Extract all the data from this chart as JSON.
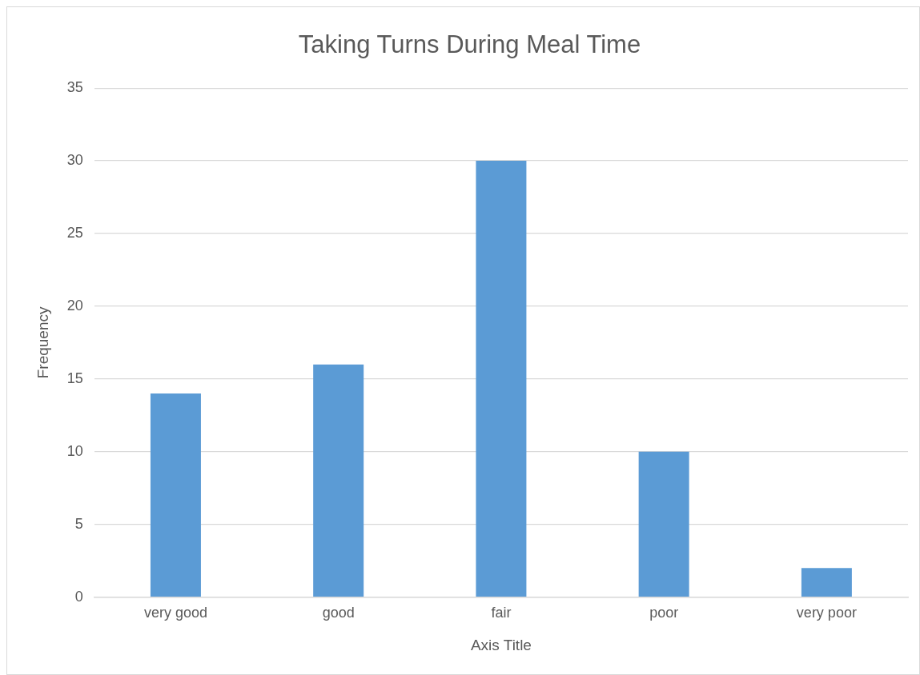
{
  "chart_data": {
    "type": "bar",
    "title": "Taking Turns During Meal Time",
    "xlabel": "Axis Title",
    "ylabel": "Frequency",
    "categories": [
      "very good",
      "good",
      "fair",
      "poor",
      "very poor"
    ],
    "series": [
      {
        "color": "#5b9bd5",
        "values": [
          14,
          16,
          30,
          10,
          2
        ]
      }
    ],
    "ylim": [
      0,
      35
    ],
    "yticks": [
      0,
      5,
      10,
      15,
      20,
      25,
      30,
      35
    ],
    "grid": "y",
    "legend": false
  }
}
